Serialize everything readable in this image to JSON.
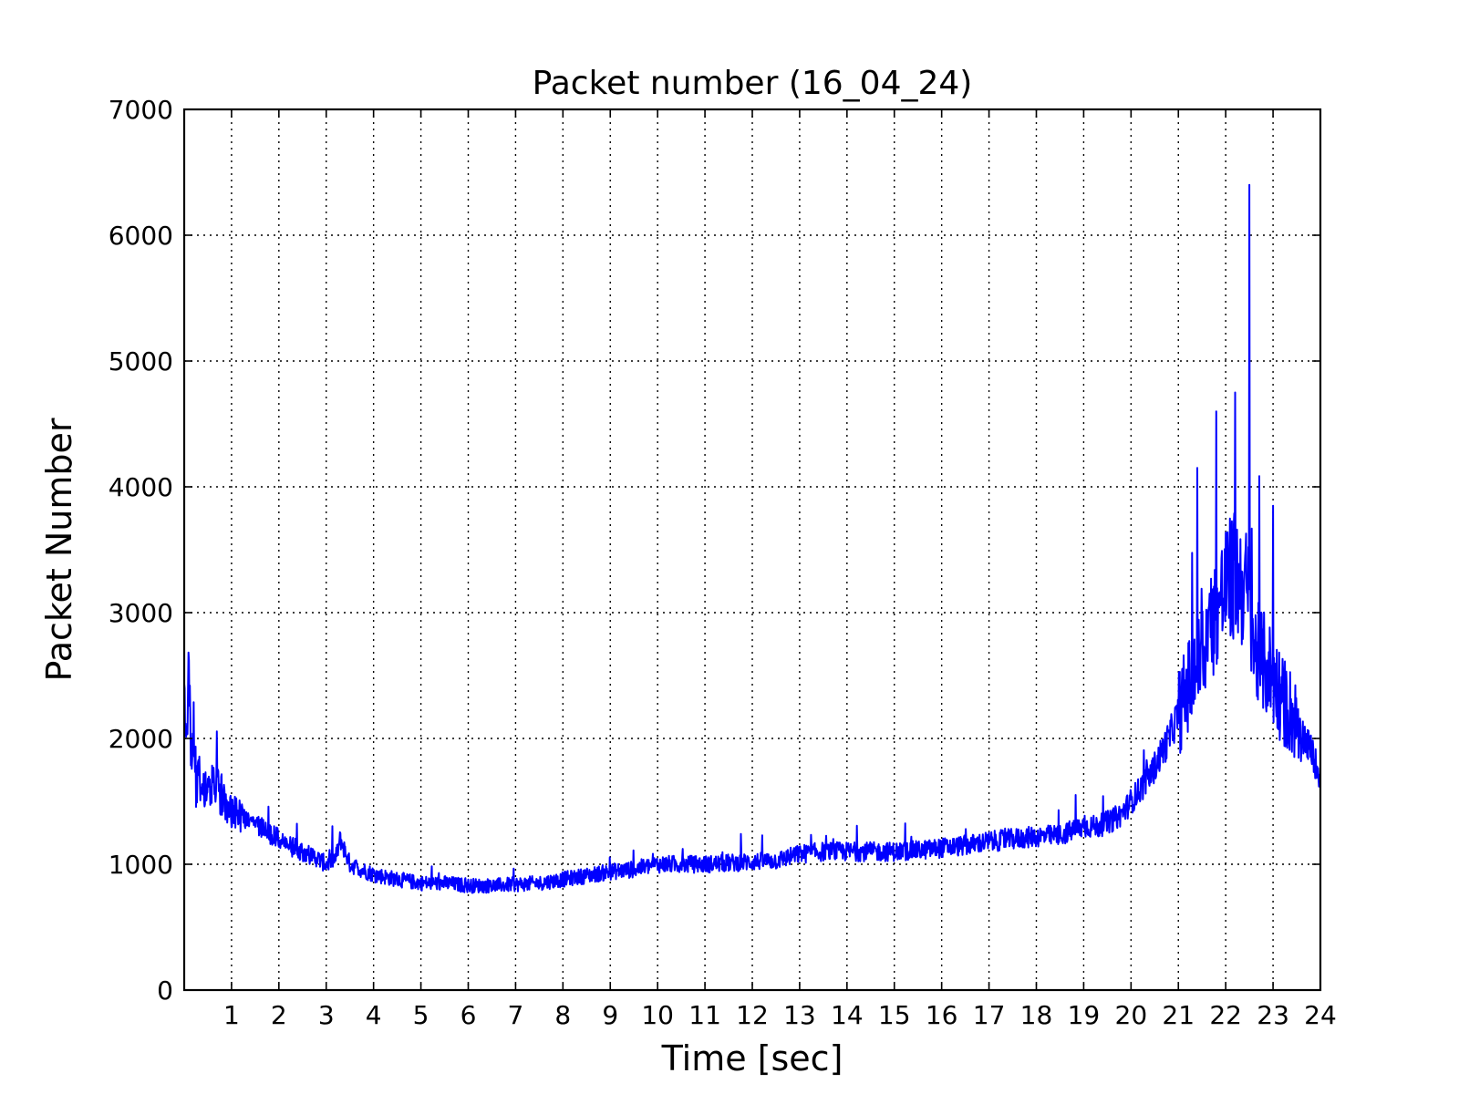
{
  "chart_data": {
    "type": "line",
    "title": "Packet number (16_04_24)",
    "xlabel": "Time [sec]",
    "ylabel": "Packet Number",
    "xlim": [
      0,
      24
    ],
    "ylim": [
      0,
      7000
    ],
    "xticks": [
      1,
      2,
      3,
      4,
      5,
      6,
      7,
      8,
      9,
      10,
      11,
      12,
      13,
      14,
      15,
      16,
      17,
      18,
      19,
      20,
      21,
      22,
      23,
      24
    ],
    "yticks": [
      0,
      1000,
      2000,
      3000,
      4000,
      5000,
      6000,
      7000
    ],
    "grid": true,
    "line_color": "#0000ff",
    "series": [
      {
        "x": [
          0,
          0.05,
          0.1,
          0.15,
          0.2,
          0.25,
          0.3,
          0.4,
          0.5,
          0.6,
          0.7,
          0.8,
          0.9,
          1.0,
          1.2,
          1.4,
          1.6,
          1.8,
          2.0,
          2.2,
          2.5,
          2.8,
          3.0,
          3.2,
          3.3,
          3.5,
          3.8,
          4.0,
          4.5,
          5.0,
          5.5,
          6.0,
          6.5,
          7.0,
          7.5,
          8.0,
          8.5,
          9.0,
          9.5,
          10.0,
          10.5,
          11.0,
          11.5,
          12.0,
          12.5,
          13.0,
          13.5,
          14.0,
          14.5,
          15.0,
          15.5,
          16.0,
          16.5,
          17.0,
          17.5,
          18.0,
          18.5,
          19.0,
          19.3,
          19.6,
          19.8,
          20.0,
          20.2,
          20.4,
          20.6,
          20.8,
          21.0,
          21.2,
          21.4,
          21.6,
          21.8,
          22.0,
          22.2,
          22.4,
          22.5,
          22.6,
          22.8,
          23.0,
          23.2,
          23.4,
          23.6,
          23.8,
          24.0
        ],
        "y": [
          2300,
          2000,
          2600,
          1800,
          2100,
          1600,
          1700,
          1600,
          1550,
          1650,
          1600,
          1550,
          1500,
          1450,
          1400,
          1350,
          1300,
          1250,
          1200,
          1150,
          1100,
          1050,
          1000,
          1050,
          1200,
          1000,
          950,
          920,
          880,
          850,
          850,
          830,
          830,
          840,
          850,
          880,
          910,
          940,
          960,
          1000,
          1000,
          1000,
          1010,
          1020,
          1030,
          1080,
          1100,
          1100,
          1100,
          1100,
          1110,
          1130,
          1150,
          1180,
          1200,
          1220,
          1230,
          1300,
          1300,
          1350,
          1400,
          1500,
          1600,
          1700,
          1850,
          2000,
          2200,
          2400,
          2600,
          2800,
          3000,
          3200,
          3300,
          3200,
          3100,
          2700,
          2600,
          2500,
          2300,
          2200,
          2050,
          1900,
          1700
        ]
      }
    ]
  }
}
